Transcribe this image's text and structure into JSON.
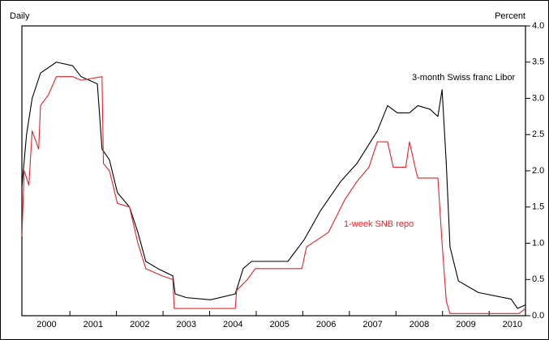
{
  "chart_data": {
    "type": "line",
    "y_label": "Percent",
    "x_label": "Daily",
    "annotations": [
      "3-month Swiss franc Libor",
      "1-week SNB repo"
    ],
    "xlim": [
      1999.97,
      2010.78
    ],
    "xticks": [
      {
        "value": 2000.5,
        "label": "2000"
      },
      {
        "value": 2001.5,
        "label": "2001"
      },
      {
        "value": 2002.5,
        "label": "2002"
      },
      {
        "value": 2003.5,
        "label": "2003"
      },
      {
        "value": 2004.5,
        "label": "2004"
      },
      {
        "value": 2005.5,
        "label": "2005"
      },
      {
        "value": 2006.5,
        "label": "2006"
      },
      {
        "value": 2007.5,
        "label": "2007"
      },
      {
        "value": 2008.5,
        "label": "2008"
      },
      {
        "value": 2009.5,
        "label": "2009"
      },
      {
        "value": 2010.5,
        "label": "2010"
      }
    ],
    "xminorticks": [
      2001,
      2002,
      2003,
      2004,
      2005,
      2006,
      2007,
      2008,
      2009,
      2010
    ],
    "ylim": [
      0,
      4
    ],
    "yticks": [
      {
        "value": 0,
        "label": "0.0"
      },
      {
        "value": 0.5,
        "label": "0.5"
      },
      {
        "value": 1,
        "label": "1.0"
      },
      {
        "value": 1.5,
        "label": "1.5"
      },
      {
        "value": 2,
        "label": "2.0"
      },
      {
        "value": 2.5,
        "label": "2.5"
      },
      {
        "value": 3,
        "label": "3.0"
      },
      {
        "value": 3.5,
        "label": "3.5"
      },
      {
        "value": 4,
        "label": "4.0"
      }
    ],
    "series": [
      {
        "name": "3-month Swiss franc Libor",
        "color": "#000000",
        "x": [
          1999.97,
          2000.07,
          2000.19,
          2000.37,
          2000.71,
          2001.06,
          2001.24,
          2001.59,
          2001.69,
          2001.85,
          2002.02,
          2002.28,
          2002.46,
          2002.63,
          2002.89,
          2003.21,
          2003.26,
          2003.5,
          2004.02,
          2004.55,
          2004.72,
          2004.9,
          2005.68,
          2006.03,
          2006.38,
          2006.81,
          2007.16,
          2007.6,
          2007.82,
          2008.03,
          2008.29,
          2008.47,
          2008.73,
          2008.9,
          2008.99,
          2009.08,
          2009.16,
          2009.34,
          2009.77,
          2010.47,
          2010.61,
          2010.78
        ],
        "values": [
          1.78,
          2.5,
          3.0,
          3.35,
          3.5,
          3.45,
          3.3,
          3.2,
          2.3,
          2.15,
          1.7,
          1.5,
          1.15,
          0.75,
          0.65,
          0.55,
          0.3,
          0.25,
          0.22,
          0.3,
          0.65,
          0.75,
          0.75,
          1.05,
          1.45,
          1.85,
          2.1,
          2.55,
          2.9,
          2.8,
          2.8,
          2.9,
          2.85,
          2.75,
          3.12,
          2.1,
          0.95,
          0.48,
          0.32,
          0.23,
          0.1,
          0.15
        ]
      },
      {
        "name": "1-week SNB repo",
        "color": "#e8202a",
        "x": [
          1999.97,
          2000.02,
          2000.12,
          2000.19,
          2000.33,
          2000.37,
          2000.54,
          2000.71,
          2001.06,
          2001.24,
          2001.69,
          2001.72,
          2001.85,
          2002.02,
          2002.28,
          2002.46,
          2002.63,
          2002.98,
          2003.21,
          2003.24,
          2004.55,
          2004.58,
          2004.81,
          2004.98,
          2005.98,
          2006.08,
          2006.55,
          2006.9,
          2007.16,
          2007.42,
          2007.6,
          2007.82,
          2007.94,
          2008.21,
          2008.29,
          2008.41,
          2008.47,
          2008.9,
          2008.99,
          2009.08,
          2009.16,
          2010.64,
          2010.78
        ],
        "values": [
          1.1,
          2.0,
          1.8,
          2.55,
          2.3,
          2.9,
          3.05,
          3.3,
          3.3,
          3.25,
          3.3,
          2.1,
          2.0,
          1.55,
          1.5,
          1.0,
          0.65,
          0.55,
          0.5,
          0.1,
          0.1,
          0.35,
          0.5,
          0.65,
          0.65,
          0.95,
          1.15,
          1.6,
          1.85,
          2.05,
          2.4,
          2.4,
          2.05,
          2.05,
          2.4,
          2.05,
          1.9,
          1.9,
          1.0,
          0.2,
          0.03,
          0.03,
          0.1
        ]
      }
    ]
  }
}
